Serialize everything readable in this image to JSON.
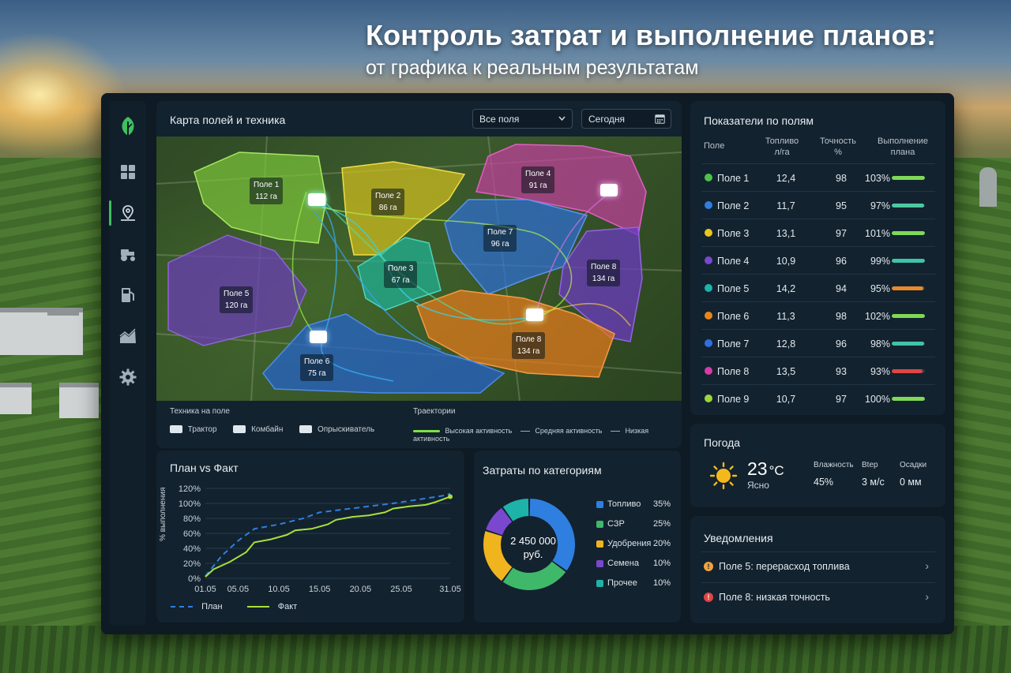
{
  "headline": {
    "title": "Контроль затрат и выполнение планов:",
    "subtitle": "от графика к реальным результатам"
  },
  "colors": {
    "accent": "#3fbf5f",
    "panel": "#13222f",
    "background": "#0e1a24"
  },
  "sidebar": {
    "items": [
      {
        "icon": "leaf-logo-icon"
      },
      {
        "icon": "dashboard-grid-icon"
      },
      {
        "icon": "map-pin-icon",
        "active": true
      },
      {
        "icon": "tractor-icon"
      },
      {
        "icon": "fuel-icon"
      },
      {
        "icon": "chart-icon"
      },
      {
        "icon": "gear-icon"
      }
    ]
  },
  "map": {
    "title": "Карта полей и техника",
    "filter_value": "Все поля",
    "date_value": "Сегодня",
    "fields": [
      {
        "name": "Поле 1",
        "area": "112 га",
        "color": "#7cc63a"
      },
      {
        "name": "Поле 2",
        "area": "86 га",
        "color": "#d6c21e"
      },
      {
        "name": "Поле 4",
        "area": "91 га",
        "color": "#c43ea0"
      },
      {
        "name": "Поле 7",
        "area": "96 га",
        "color": "#2e6fd8"
      },
      {
        "name": "Поле 3",
        "area": "67 га",
        "color": "#1eb39a"
      },
      {
        "name": "Поле 8",
        "area": "134 га",
        "color": "#6b3bbf"
      },
      {
        "name": "Поле 5",
        "area": "120 га",
        "color": "#6a3db5"
      },
      {
        "name": "Поле 8",
        "area": "134 га",
        "color": "#e07a1c"
      },
      {
        "name": "Поле 6",
        "area": "75 га",
        "color": "#2563c9"
      }
    ],
    "machinery_legend_title": "Техника на поле",
    "machinery": [
      "Трактор",
      "Комбайн",
      "Опрыскиватель"
    ],
    "trajectory_legend_title": "Траектории",
    "trajectories": [
      "Высокая активность",
      "Средняя активность",
      "Низкая активность"
    ]
  },
  "fields_table": {
    "title": "Показатели по полям",
    "headers": {
      "field": "Поле",
      "fuel": "Топливо л/га",
      "accuracy": "Точность %",
      "plan": "Выполнение плана"
    },
    "rows": [
      {
        "name": "Поле 1",
        "color": "#4cc24a",
        "fuel": "12,4",
        "accuracy": "98",
        "plan": "103%",
        "progress": 1.0,
        "bar": "#7ed957"
      },
      {
        "name": "Поле 2",
        "color": "#2f7fe0",
        "fuel": "11,7",
        "accuracy": "95",
        "plan": "97%",
        "progress": 0.97,
        "bar": "#4cc9a0"
      },
      {
        "name": "Поле 3",
        "color": "#e8c61e",
        "fuel": "13,1",
        "accuracy": "97",
        "plan": "101%",
        "progress": 1.0,
        "bar": "#7ed957"
      },
      {
        "name": "Поле 4",
        "color": "#7a47cf",
        "fuel": "10,9",
        "accuracy": "96",
        "plan": "99%",
        "progress": 0.99,
        "bar": "#3fc4a6"
      },
      {
        "name": "Поле 5",
        "color": "#1eb3a8",
        "fuel": "14,2",
        "accuracy": "94",
        "plan": "95%",
        "progress": 0.95,
        "bar": "#e88a2a"
      },
      {
        "name": "Поле 6",
        "color": "#e8861e",
        "fuel": "11,3",
        "accuracy": "98",
        "plan": "102%",
        "progress": 1.0,
        "bar": "#7ed957"
      },
      {
        "name": "Поле 7",
        "color": "#2f6fe0",
        "fuel": "12,8",
        "accuracy": "96",
        "plan": "98%",
        "progress": 0.98,
        "bar": "#3fc4a6"
      },
      {
        "name": "Поле 8",
        "color": "#d83aa8",
        "fuel": "13,5",
        "accuracy": "93",
        "plan": "93%",
        "progress": 0.93,
        "bar": "#e04545"
      },
      {
        "name": "Поле 9",
        "color": "#9bd63a",
        "fuel": "10,7",
        "accuracy": "97",
        "plan": "100%",
        "progress": 1.0,
        "bar": "#7ed957"
      }
    ]
  },
  "weather": {
    "title": "Погода",
    "temp": "23",
    "unit": "°C",
    "condition": "Ясно",
    "humidity_label": "Влажность",
    "humidity": "45%",
    "wind_label": "Вtер",
    "wind": "3 м/с",
    "precip_label": "Осадки",
    "precip": "0 мм"
  },
  "notifications": {
    "title": "Уведомления",
    "items": [
      {
        "text": "Поле 5: перерасход топлива",
        "icon": "warning-icon",
        "color": "#f0a23a"
      },
      {
        "text": "Поле 8: низкая точность",
        "icon": "error-icon",
        "color": "#e04545"
      }
    ]
  },
  "plan_chart": {
    "title": "План vs Факт",
    "ylabel": "% выполнения",
    "legend_plan": "План",
    "legend_fact": "Факт"
  },
  "chart_data": [
    {
      "type": "line",
      "title": "План vs Факт",
      "xlabel": "",
      "ylabel": "% выполнения",
      "x_ticks": [
        "01.05",
        "05.05",
        "10.05",
        "15.05",
        "20.05",
        "25.05",
        "31.05"
      ],
      "y_ticks": [
        "0%",
        "20%",
        "40%",
        "60%",
        "80%",
        "100%",
        "120%"
      ],
      "ylim": [
        0,
        120
      ],
      "xlim": [
        1,
        31
      ],
      "grid": true,
      "legend": "bottom",
      "series": [
        {
          "name": "План",
          "color": "#2f7fe0",
          "style": "dashed",
          "x": [
            1,
            3,
            5,
            7,
            10,
            13,
            15,
            18,
            21,
            24,
            27,
            30,
            31
          ],
          "y": [
            3,
            30,
            50,
            66,
            72,
            80,
            88,
            92,
            96,
            100,
            105,
            110,
            113
          ]
        },
        {
          "name": "Факт",
          "color": "#a8e03a",
          "style": "solid",
          "x": [
            1,
            2,
            4,
            6,
            7,
            9,
            11,
            12,
            14,
            16,
            17,
            19,
            21,
            23,
            24,
            26,
            28,
            29,
            30,
            31
          ],
          "y": [
            2,
            12,
            22,
            35,
            48,
            52,
            58,
            64,
            66,
            72,
            78,
            82,
            84,
            88,
            93,
            96,
            98,
            101,
            105,
            109
          ]
        }
      ]
    },
    {
      "type": "pie",
      "title": "Затраты по категориям",
      "center_value": "2 450 000",
      "center_unit": "руб.",
      "categories": [
        "Топливо",
        "СЗР",
        "Удобрения",
        "Семена",
        "Прочее"
      ],
      "values": [
        35,
        25,
        20,
        10,
        10
      ],
      "labels": [
        "35%",
        "25%",
        "20%",
        "10%",
        "10%"
      ],
      "colors": [
        "#2f7fe0",
        "#3fb86a",
        "#f0b41e",
        "#7a47cf",
        "#1eb3a8"
      ]
    }
  ]
}
